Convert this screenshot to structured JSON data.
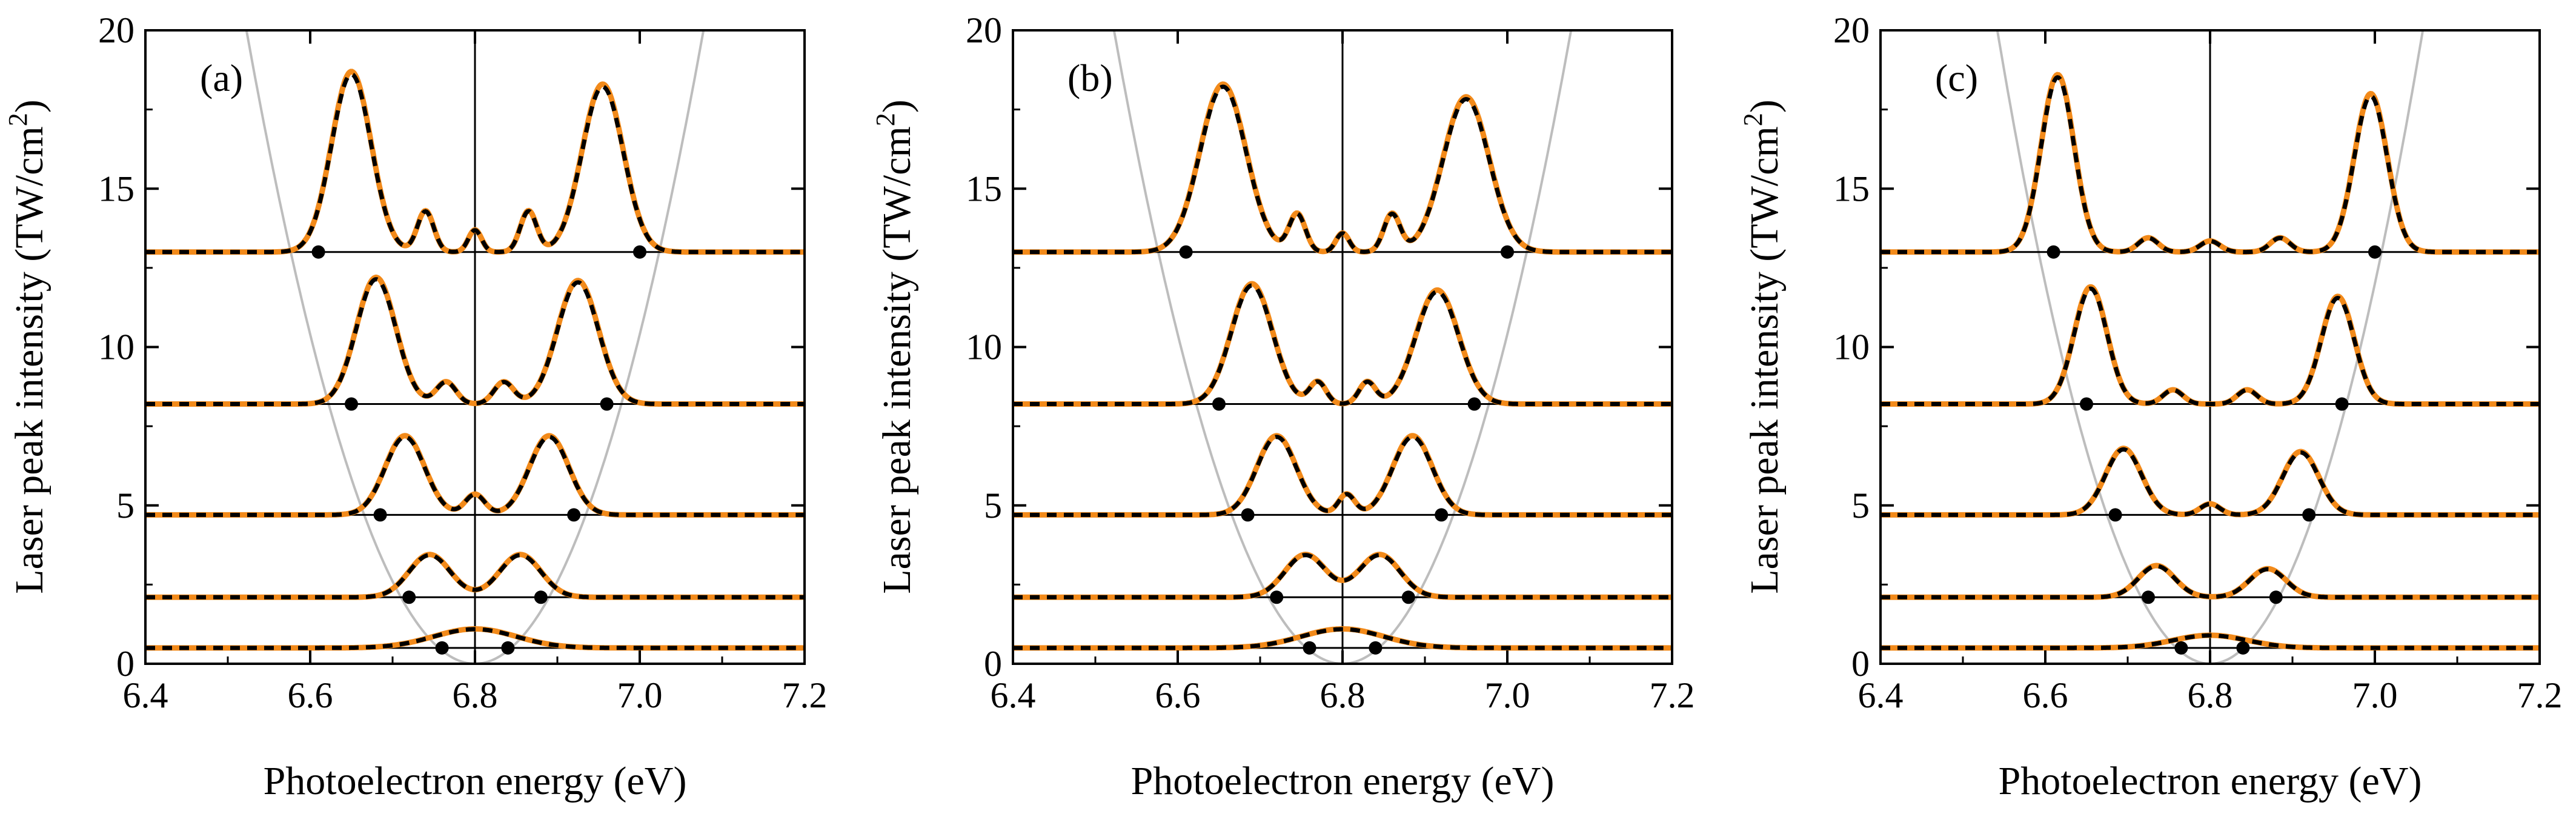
{
  "figure": {
    "note": "Three-panel photoelectron spectra vs. laser peak intensity"
  },
  "colors": {
    "exact": "#f28a1a",
    "model": "#000000",
    "parabola": "#bdbdbd",
    "axis": "#000000",
    "baseline": "#000000"
  },
  "axes_common": {
    "xlabel": "Photoelectron energy (eV)",
    "ylabel_main": "Laser peak intensity (TW/cm",
    "ylabel_sup": "2",
    "ylabel_close": ")",
    "xlim": [
      6.4,
      7.2
    ],
    "ylim": [
      0,
      20
    ],
    "xticks": [
      6.4,
      6.6,
      6.8,
      7.0,
      7.2
    ],
    "xticklabels": [
      "6.4",
      "6.6",
      "6.8",
      "7.0",
      "7.2"
    ],
    "yticks": [
      0,
      5,
      10,
      15,
      20
    ],
    "yticklabels": [
      "0",
      "5",
      "10",
      "15",
      "20"
    ]
  },
  "chart_data": [
    {
      "type": "line",
      "panel_label": "(a)",
      "center_energy": 6.8,
      "parabola": {
        "vertex_x": 6.8,
        "vertex_y": 0,
        "curvature": 260
      },
      "series": [
        {
          "name": "exact (orange solid)",
          "style": "solid"
        },
        {
          "name": "model (black dashed)",
          "style": "dashed"
        }
      ],
      "traces": [
        {
          "baseline": 0.5,
          "peaks": [
            {
              "x": 6.8,
              "h": 0.6,
              "w": 0.05
            }
          ],
          "markers": [
            6.76,
            6.84
          ]
        },
        {
          "baseline": 2.1,
          "peaks": [
            {
              "x": 6.745,
              "h": 1.35,
              "w": 0.025
            },
            {
              "x": 6.855,
              "h": 1.35,
              "w": 0.025
            }
          ],
          "markers": [
            6.72,
            6.88
          ]
        },
        {
          "baseline": 4.7,
          "peaks": [
            {
              "x": 6.715,
              "h": 2.5,
              "w": 0.024
            },
            {
              "x": 6.8,
              "h": 0.65,
              "w": 0.012
            },
            {
              "x": 6.89,
              "h": 2.5,
              "w": 0.024
            }
          ],
          "markers": [
            6.685,
            6.92
          ]
        },
        {
          "baseline": 8.2,
          "peaks": [
            {
              "x": 6.68,
              "h": 4.0,
              "w": 0.024
            },
            {
              "x": 6.765,
              "h": 0.7,
              "w": 0.012
            },
            {
              "x": 6.835,
              "h": 0.7,
              "w": 0.012
            },
            {
              "x": 6.925,
              "h": 3.9,
              "w": 0.025
            }
          ],
          "markers": [
            6.65,
            6.96
          ]
        },
        {
          "baseline": 13.0,
          "peaks": [
            {
              "x": 6.65,
              "h": 5.7,
              "w": 0.024
            },
            {
              "x": 6.74,
              "h": 1.3,
              "w": 0.01
            },
            {
              "x": 6.8,
              "h": 0.7,
              "w": 0.008
            },
            {
              "x": 6.865,
              "h": 1.3,
              "w": 0.01
            },
            {
              "x": 6.955,
              "h": 5.3,
              "w": 0.025
            }
          ],
          "markers": [
            6.61,
            7.0
          ]
        }
      ]
    },
    {
      "type": "line",
      "panel_label": "(b)",
      "center_energy": 6.8,
      "parabola": {
        "vertex_x": 6.8,
        "vertex_y": 0,
        "curvature": 260
      },
      "series": [
        {
          "name": "exact (orange solid)",
          "style": "solid"
        },
        {
          "name": "model (black dashed)",
          "style": "dashed"
        }
      ],
      "traces": [
        {
          "baseline": 0.5,
          "peaks": [
            {
              "x": 6.8,
              "h": 0.6,
              "w": 0.05
            }
          ],
          "markers": [
            6.76,
            6.84
          ]
        },
        {
          "baseline": 2.1,
          "peaks": [
            {
              "x": 6.755,
              "h": 1.35,
              "w": 0.025
            },
            {
              "x": 6.845,
              "h": 1.35,
              "w": 0.025
            }
          ],
          "markers": [
            6.72,
            6.88
          ]
        },
        {
          "baseline": 4.7,
          "peaks": [
            {
              "x": 6.72,
              "h": 2.5,
              "w": 0.024
            },
            {
              "x": 6.805,
              "h": 0.65,
              "w": 0.01
            },
            {
              "x": 6.885,
              "h": 2.5,
              "w": 0.024
            }
          ],
          "markers": [
            6.685,
            6.92
          ]
        },
        {
          "baseline": 8.2,
          "peaks": [
            {
              "x": 6.69,
              "h": 3.8,
              "w": 0.025
            },
            {
              "x": 6.77,
              "h": 0.7,
              "w": 0.01
            },
            {
              "x": 6.83,
              "h": 0.7,
              "w": 0.01
            },
            {
              "x": 6.915,
              "h": 3.6,
              "w": 0.026
            }
          ],
          "markers": [
            6.65,
            6.96
          ]
        },
        {
          "baseline": 13.0,
          "peaks": [
            {
              "x": 6.655,
              "h": 5.3,
              "w": 0.028
            },
            {
              "x": 6.745,
              "h": 1.2,
              "w": 0.01
            },
            {
              "x": 6.8,
              "h": 0.6,
              "w": 0.008
            },
            {
              "x": 6.86,
              "h": 1.2,
              "w": 0.01
            },
            {
              "x": 6.95,
              "h": 4.9,
              "w": 0.028
            }
          ],
          "markers": [
            6.61,
            7.0
          ]
        }
      ]
    },
    {
      "type": "line",
      "panel_label": "(c)",
      "center_energy": 6.8,
      "parabola": {
        "vertex_x": 6.8,
        "vertex_y": 0,
        "curvature": 300
      },
      "series": [
        {
          "name": "exact (orange solid)",
          "style": "solid"
        },
        {
          "name": "model (black dashed)",
          "style": "dashed"
        }
      ],
      "traces": [
        {
          "baseline": 0.5,
          "peaks": [
            {
              "x": 6.8,
              "h": 0.4,
              "w": 0.045
            }
          ],
          "markers": [
            6.765,
            6.84
          ]
        },
        {
          "baseline": 2.1,
          "peaks": [
            {
              "x": 6.735,
              "h": 1.0,
              "w": 0.022
            },
            {
              "x": 6.87,
              "h": 0.9,
              "w": 0.022
            }
          ],
          "markers": [
            6.725,
            6.88
          ]
        },
        {
          "baseline": 4.7,
          "peaks": [
            {
              "x": 6.695,
              "h": 2.1,
              "w": 0.022
            },
            {
              "x": 6.8,
              "h": 0.35,
              "w": 0.012
            },
            {
              "x": 6.91,
              "h": 2.0,
              "w": 0.022
            }
          ],
          "markers": [
            6.685,
            6.92
          ]
        },
        {
          "baseline": 8.2,
          "peaks": [
            {
              "x": 6.655,
              "h": 3.7,
              "w": 0.02
            },
            {
              "x": 6.755,
              "h": 0.45,
              "w": 0.012
            },
            {
              "x": 6.845,
              "h": 0.45,
              "w": 0.012
            },
            {
              "x": 6.955,
              "h": 3.4,
              "w": 0.02
            }
          ],
          "markers": [
            6.65,
            6.96
          ]
        },
        {
          "baseline": 13.0,
          "peaks": [
            {
              "x": 6.615,
              "h": 5.6,
              "w": 0.02
            },
            {
              "x": 6.725,
              "h": 0.45,
              "w": 0.012
            },
            {
              "x": 6.8,
              "h": 0.35,
              "w": 0.012
            },
            {
              "x": 6.885,
              "h": 0.45,
              "w": 0.012
            },
            {
              "x": 6.995,
              "h": 5.0,
              "w": 0.02
            }
          ],
          "markers": [
            6.61,
            7.0
          ]
        }
      ]
    }
  ]
}
